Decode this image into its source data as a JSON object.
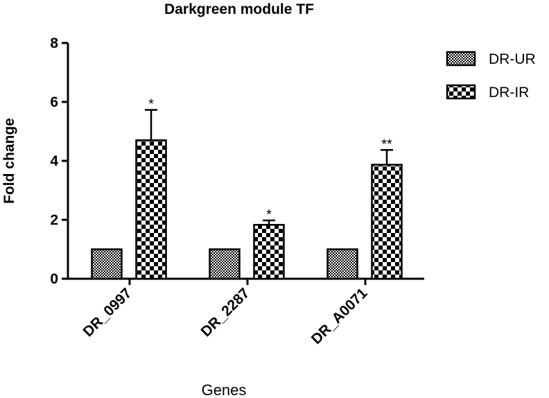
{
  "chart_data": {
    "type": "bar",
    "title": "Darkgreen module TF",
    "xlabel": "Genes",
    "ylabel": "Fold change",
    "ylim": [
      0,
      8
    ],
    "yticks": [
      0,
      2,
      4,
      6,
      8
    ],
    "categories": [
      "DR_0997",
      "DR_2287",
      "DR_A0071"
    ],
    "series": [
      {
        "name": "DR-UR",
        "pattern": "fine-checker",
        "values": [
          1.0,
          1.0,
          1.0
        ],
        "errors": [
          0,
          0,
          0
        ],
        "significance": [
          "",
          "",
          ""
        ]
      },
      {
        "name": "DR-IR",
        "pattern": "coarse-checker",
        "values": [
          4.7,
          1.83,
          3.87
        ],
        "errors": [
          1.03,
          0.15,
          0.5
        ],
        "significance": [
          "*",
          "*",
          "**"
        ]
      }
    ],
    "legend_position": "top-right",
    "grid": false,
    "colors": {
      "fill_dark": "#000000",
      "fill_light": "#ffffff"
    }
  }
}
